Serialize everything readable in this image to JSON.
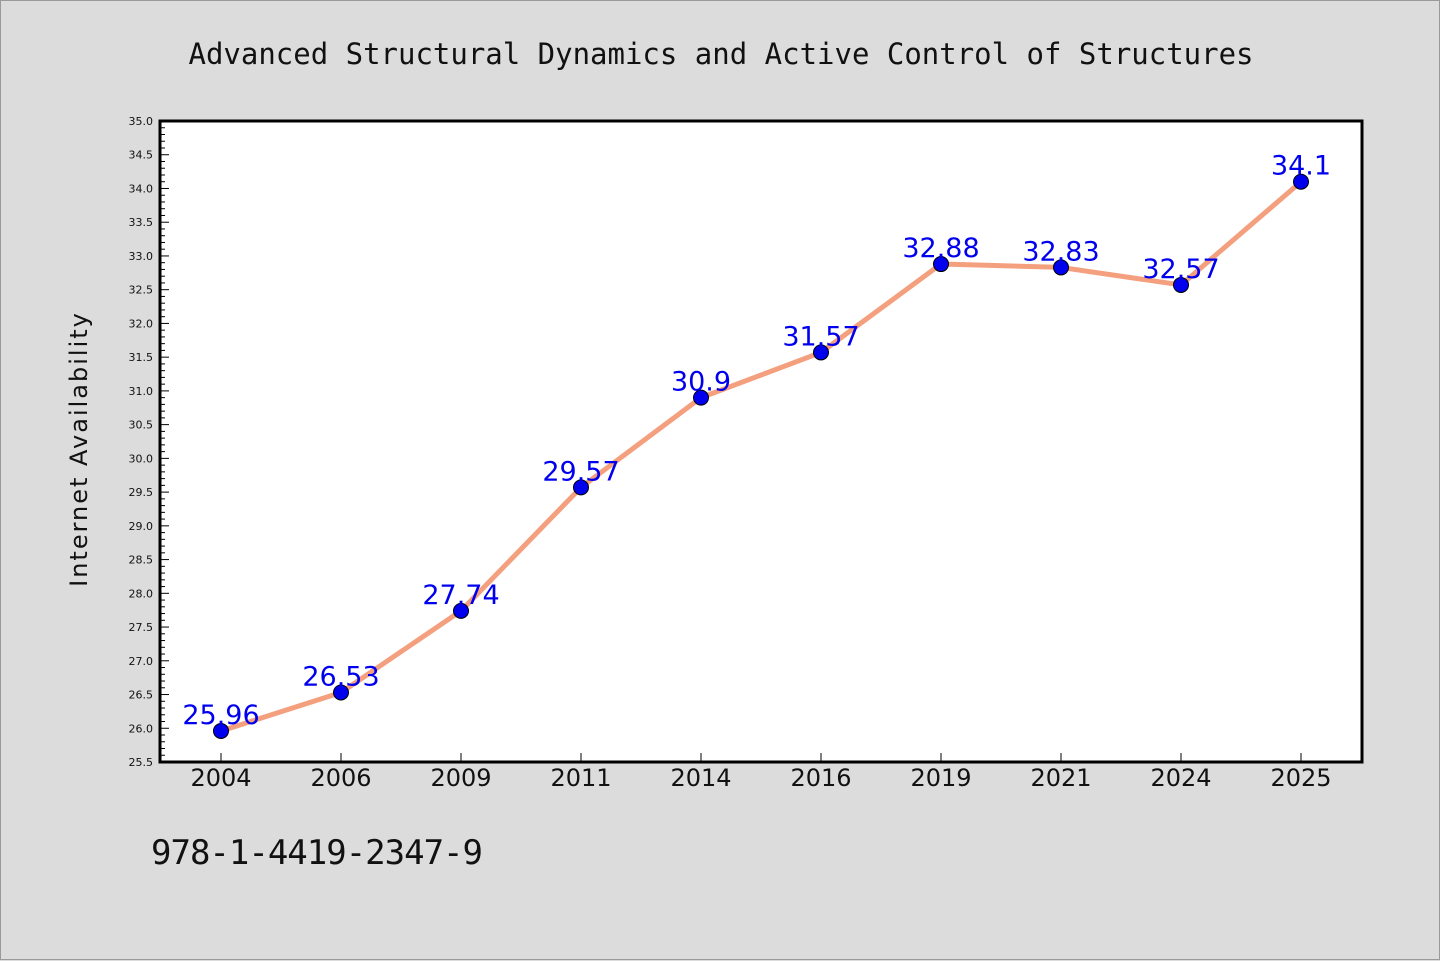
{
  "footer": {
    "code": "978-1-4419-2347-9"
  },
  "chart_data": {
    "type": "line",
    "title": "Advanced Structural Dynamics and Active Control of Structures",
    "xlabel": "",
    "ylabel": "Internet Availability",
    "categories": [
      "2004",
      "2006",
      "2009",
      "2011",
      "2014",
      "2016",
      "2019",
      "2021",
      "2024",
      "2025"
    ],
    "series": [
      {
        "values": [
          25.96,
          26.53,
          27.74,
          29.57,
          30.9,
          31.57,
          32.88,
          32.83,
          32.57,
          34.1
        ]
      }
    ],
    "data_labels": [
      "25.96",
      "26.53",
      "27.74",
      "29.57",
      "30.9",
      "31.57",
      "32.88",
      "32.83",
      "32.57",
      "34.1"
    ],
    "ylim": [
      25.5,
      35.0
    ],
    "yticks": [
      "25.5",
      "26.0",
      "26.5",
      "27.0",
      "27.5",
      "28.0",
      "28.5",
      "29.0",
      "29.5",
      "30.0",
      "30.5",
      "31.0",
      "31.5",
      "32.0",
      "32.5",
      "33.0",
      "33.5",
      "34.0",
      "34.5",
      "35.0"
    ],
    "grid": false,
    "legend": "none",
    "colors": {
      "line": "#f4a07e",
      "marker": "#0000ee",
      "label": "#0000ee",
      "plot_bg": "#ffffff",
      "page_bg": "#dcdcdc"
    }
  }
}
